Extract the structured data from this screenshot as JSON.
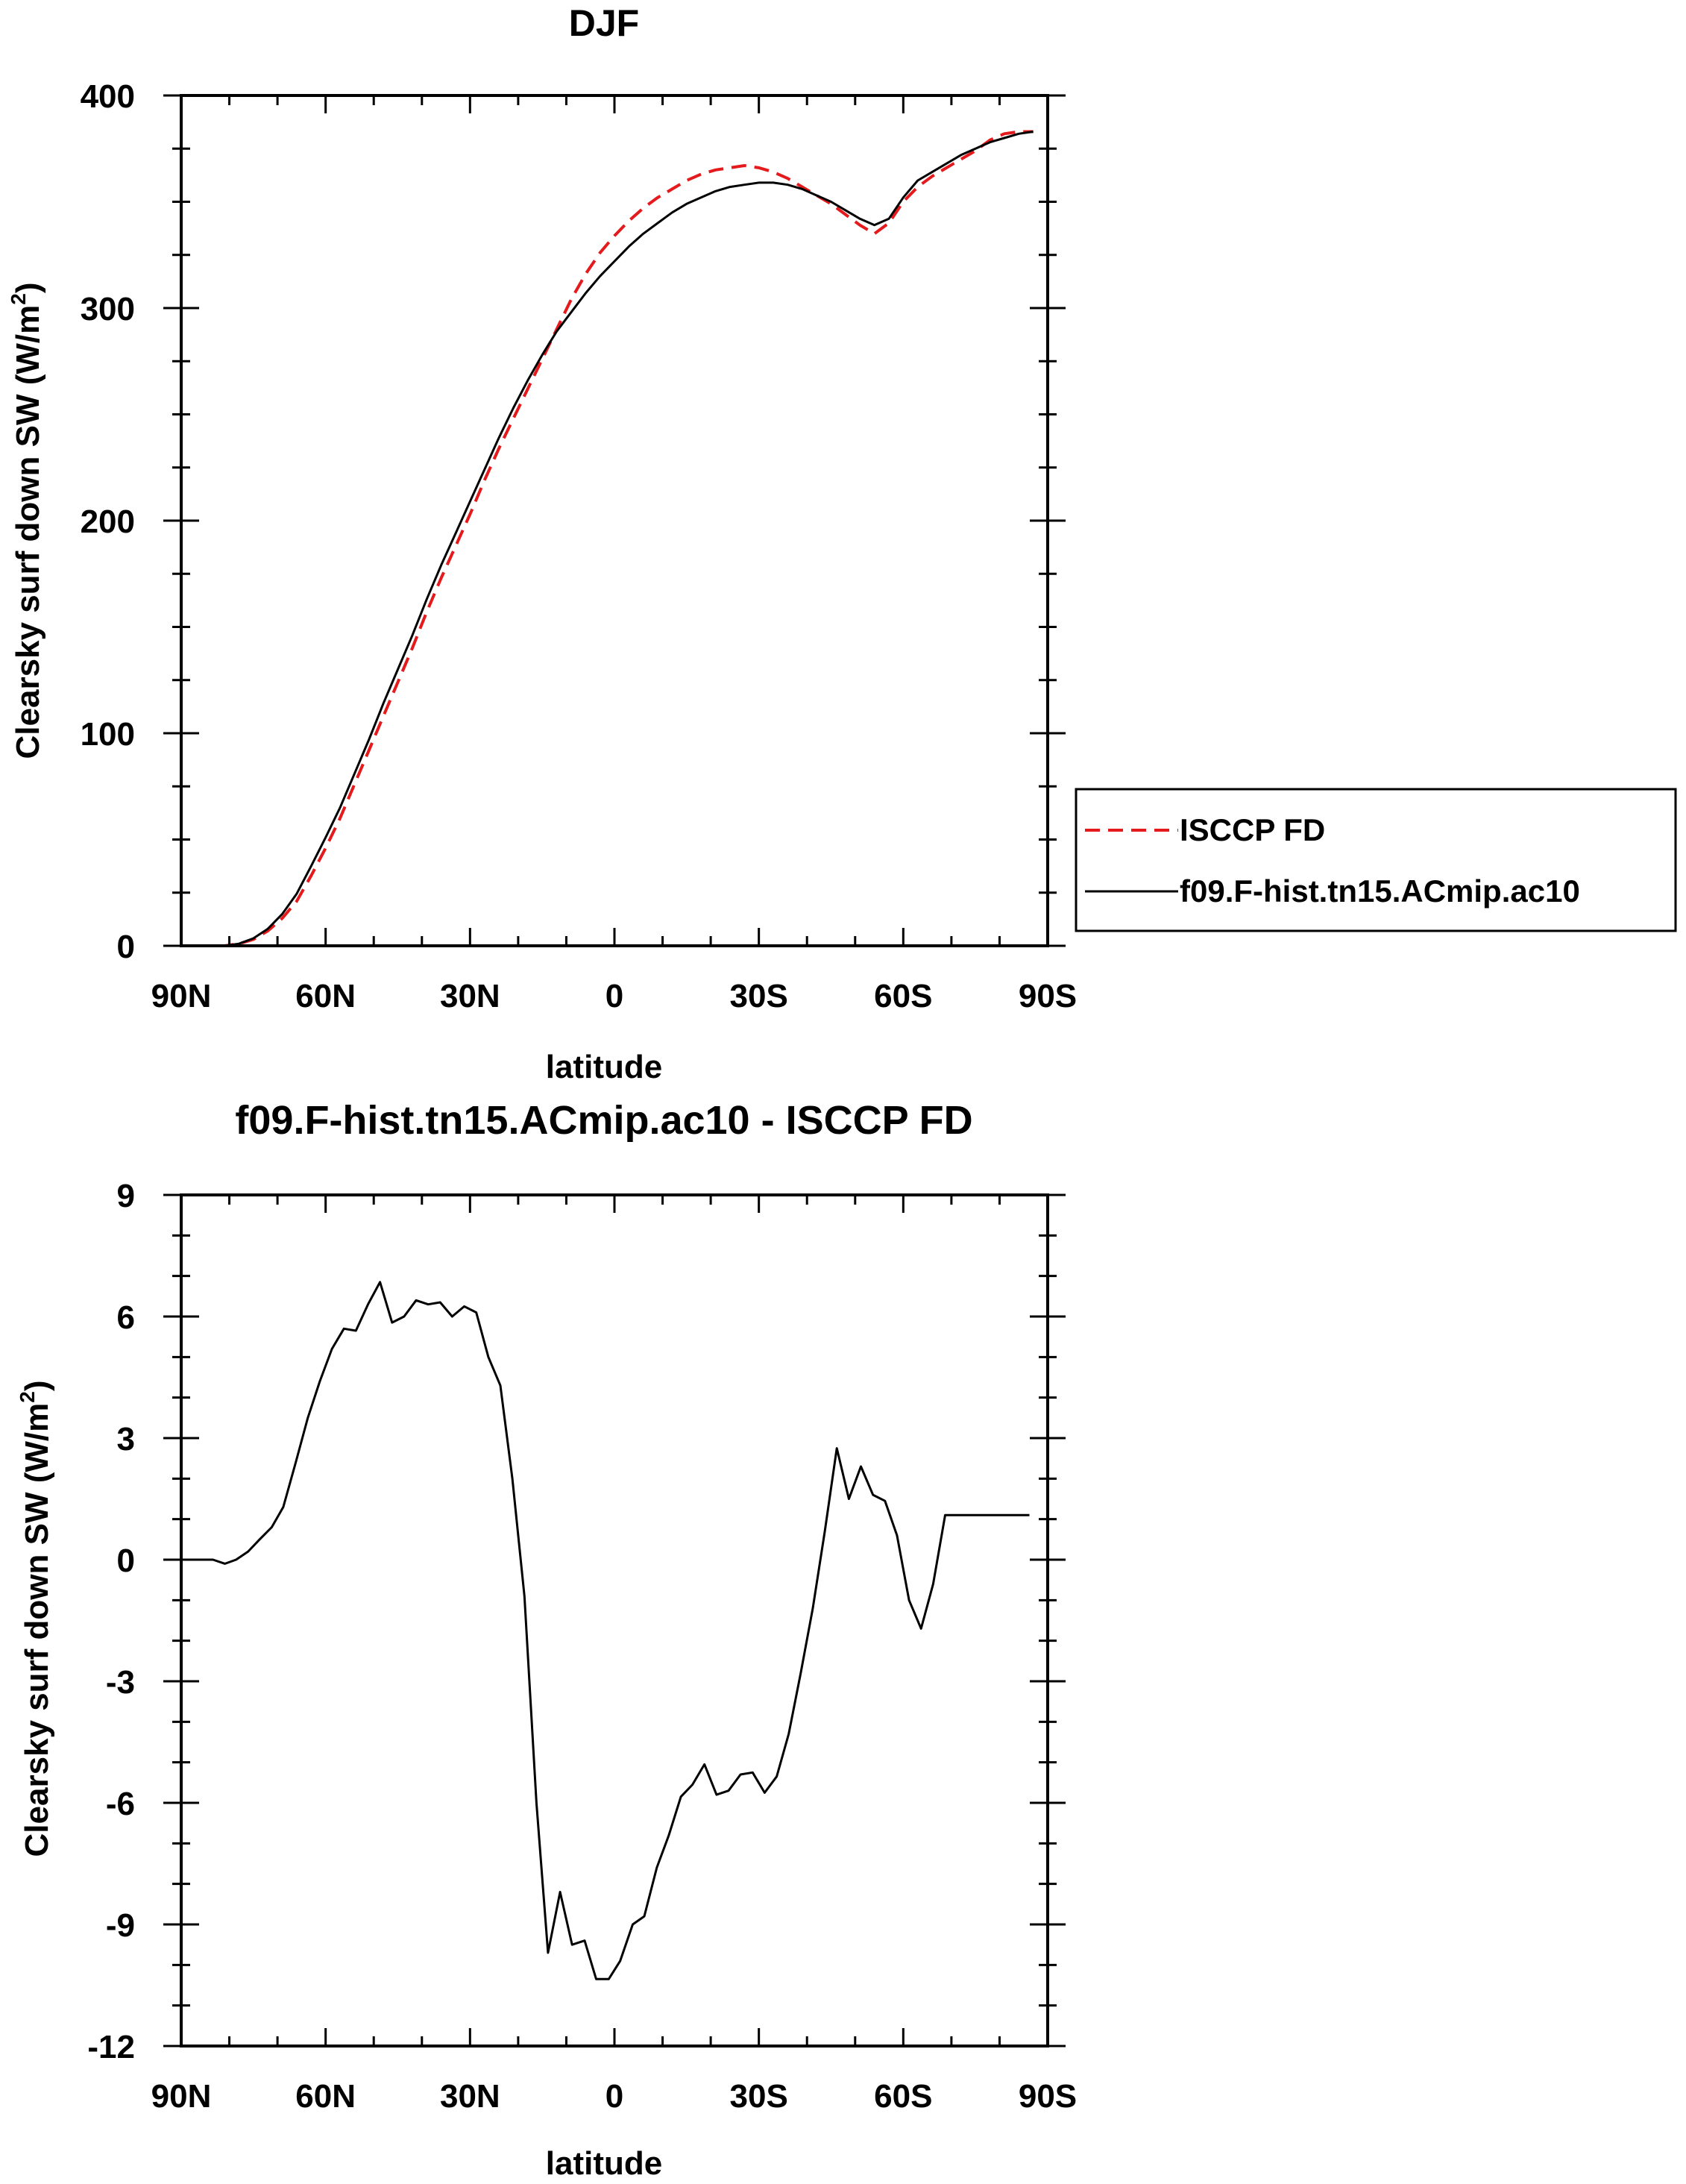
{
  "chart_data": [
    {
      "type": "line",
      "title": "DJF",
      "xlabel": "latitude",
      "ylabel": "Clearsky surf down SW (W/m",
      "ylabel_sup": "2",
      "ylabel_end": ")",
      "xlim": [
        90,
        -90
      ],
      "ylim": [
        0,
        400
      ],
      "x_ticks": [
        90,
        60,
        30,
        0,
        -30,
        -60,
        -90
      ],
      "x_tick_labels": [
        "90N",
        "60N",
        "30N",
        "0",
        "30S",
        "60S",
        "90S"
      ],
      "y_ticks": [
        0,
        100,
        200,
        300,
        400
      ],
      "y_tick_labels": [
        "0",
        "100",
        "200",
        "300",
        "400"
      ],
      "grid": false,
      "legend_position": "right, outside plot",
      "series": [
        {
          "name": "ISCCP FD",
          "color": "#e41a1c",
          "dash": "dashed",
          "x": [
            87,
            84,
            81,
            78,
            75,
            72,
            69,
            66,
            63,
            60,
            57,
            54,
            51,
            48,
            45,
            42,
            39,
            36,
            33,
            30,
            27,
            24,
            21,
            18,
            15,
            12,
            9,
            6,
            3,
            0,
            -3,
            -6,
            -9,
            -12,
            -15,
            -18,
            -21,
            -24,
            -27,
            -30,
            -33,
            -36,
            -39,
            -42,
            -45,
            -48,
            -51,
            -54,
            -57,
            -60,
            -63,
            -66,
            -69,
            -72,
            -75,
            -78,
            -81,
            -84,
            -87
          ],
          "y": [
            0,
            0,
            0,
            1,
            3,
            7,
            13,
            21,
            33,
            46,
            60,
            76,
            92,
            108,
            124,
            140,
            157,
            173,
            188,
            203,
            219,
            234,
            248,
            262,
            276,
            290,
            304,
            316,
            326,
            334,
            341,
            347,
            352,
            356,
            360,
            363,
            365,
            366,
            367,
            366,
            364,
            361,
            357,
            353,
            349,
            344,
            339,
            335,
            340,
            350,
            357,
            362,
            366,
            370,
            374,
            379,
            382,
            383,
            383
          ]
        },
        {
          "name": "f09.F-hist.tn15.ACmip.ac10",
          "color": "#000000",
          "dash": "solid",
          "x": [
            87,
            84,
            81,
            78,
            75,
            72,
            69,
            66,
            63,
            60,
            57,
            54,
            51,
            48,
            45,
            42,
            39,
            36,
            33,
            30,
            27,
            24,
            21,
            18,
            15,
            12,
            9,
            6,
            3,
            0,
            -3,
            -6,
            -9,
            -12,
            -15,
            -18,
            -21,
            -24,
            -27,
            -30,
            -33,
            -36,
            -39,
            -42,
            -45,
            -48,
            -51,
            -54,
            -57,
            -60,
            -63,
            -66,
            -69,
            -72,
            -75,
            -78,
            -81,
            -84,
            -87
          ],
          "y": [
            0,
            0,
            0,
            1,
            3.5,
            8,
            15,
            24.5,
            37.5,
            51,
            65,
            81,
            97,
            114,
            130,
            146,
            163,
            179,
            194,
            209,
            224,
            239,
            253,
            266,
            278,
            289,
            298,
            307,
            315,
            322,
            329,
            335,
            340,
            345,
            349,
            352,
            355,
            357,
            358,
            359,
            359,
            358,
            356,
            353,
            350,
            346,
            342,
            339,
            342,
            352,
            360,
            364,
            368,
            372,
            375,
            378,
            380,
            382,
            383
          ]
        }
      ]
    },
    {
      "type": "line",
      "title": "f09.F-hist.tn15.ACmip.ac10 - ISCCP FD",
      "xlabel": "latitude",
      "ylabel": "Clearsky surf down SW (W/m",
      "ylabel_sup": "2",
      "ylabel_end": ")",
      "xlim": [
        90,
        -90
      ],
      "ylim": [
        -12,
        9
      ],
      "x_ticks": [
        90,
        60,
        30,
        0,
        -30,
        -60,
        -90
      ],
      "x_tick_labels": [
        "90N",
        "60N",
        "30N",
        "0",
        "30S",
        "60S",
        "90S"
      ],
      "y_ticks": [
        -12,
        -9,
        -6,
        -3,
        0,
        3,
        6,
        9
      ],
      "y_tick_labels": [
        "-12",
        "-9",
        "-6",
        "-3",
        "0",
        "3",
        "6",
        "9"
      ],
      "grid": false,
      "series": [
        {
          "name": "",
          "color": "#000000",
          "dash": "solid",
          "x": [
            87.7,
            83.4,
            80.9,
            78.6,
            76.1,
            73.7,
            71.2,
            68.8,
            66.2,
            63.7,
            61.2,
            58.7,
            56.2,
            53.7,
            51.2,
            48.7,
            46.2,
            43.7,
            41.2,
            38.7,
            36.2,
            33.7,
            31.2,
            28.7,
            26.2,
            23.7,
            21.2,
            18.7,
            16.2,
            13.8,
            11.3,
            8.8,
            6.2,
            3.8,
            1.2,
            -1.2,
            -3.8,
            -6.2,
            -8.8,
            -11.3,
            -13.8,
            -16.2,
            -18.7,
            -21.2,
            -23.7,
            -26.2,
            -28.7,
            -31.2,
            -33.7,
            -36.2,
            -38.7,
            -41.2,
            -43.7,
            -46.2,
            -48.7,
            -51.2,
            -53.7,
            -56.2,
            -58.7,
            -61.2,
            -63.7,
            -66.2,
            -68.7,
            -71.2,
            -73.7,
            -76.2,
            -78.7,
            -81.2,
            -83.7,
            -86.2
          ],
          "y": [
            0,
            0,
            -0.1,
            0,
            0.2,
            0.5,
            0.8,
            1.3,
            2.4,
            3.5,
            4.4,
            5.2,
            5.7,
            5.65,
            6.3,
            6.85,
            5.85,
            6.0,
            6.4,
            6.3,
            6.35,
            6.0,
            6.25,
            6.1,
            5.0,
            4.3,
            2.0,
            -0.9,
            -6.0,
            -9.7,
            -8.2,
            -9.5,
            -9.4,
            -10.35,
            -10.35,
            -9.9,
            -9.0,
            -8.8,
            -7.6,
            -6.8,
            -5.85,
            -5.55,
            -5.05,
            -5.8,
            -5.7,
            -5.3,
            -5.25,
            -5.75,
            -5.35,
            -4.3,
            -2.8,
            -1.2,
            0.7,
            2.75,
            1.5,
            2.3,
            1.6,
            1.45,
            0.6,
            -1.0,
            -1.7,
            -0.6,
            1.1,
            1.1,
            1.1,
            1.1,
            1.1,
            1.1,
            1.1,
            1.1
          ]
        }
      ]
    }
  ]
}
